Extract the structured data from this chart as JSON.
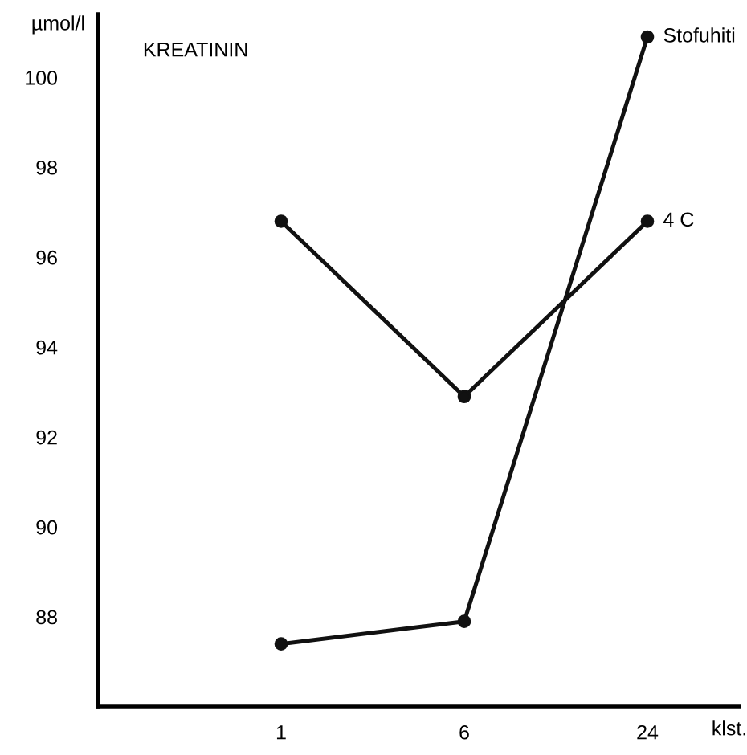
{
  "chart_data": {
    "type": "line",
    "title": "KREATININ",
    "ylabel": "µmol/l",
    "xlabel": "klst.",
    "categories": [
      "1",
      "6",
      "24"
    ],
    "series": [
      {
        "name": "Stofuhiti",
        "color": "#111111",
        "values": [
          87.4,
          87.9,
          100.9
        ]
      },
      {
        "name": "4 C",
        "color": "#111111",
        "values": [
          96.8,
          92.9,
          96.8
        ]
      }
    ],
    "ylim": [
      86,
      101.4
    ],
    "yticks": [
      88,
      90,
      92,
      94,
      96,
      98,
      100
    ],
    "grid": false,
    "legend": false,
    "marker": "circle",
    "line_style": "solid"
  }
}
